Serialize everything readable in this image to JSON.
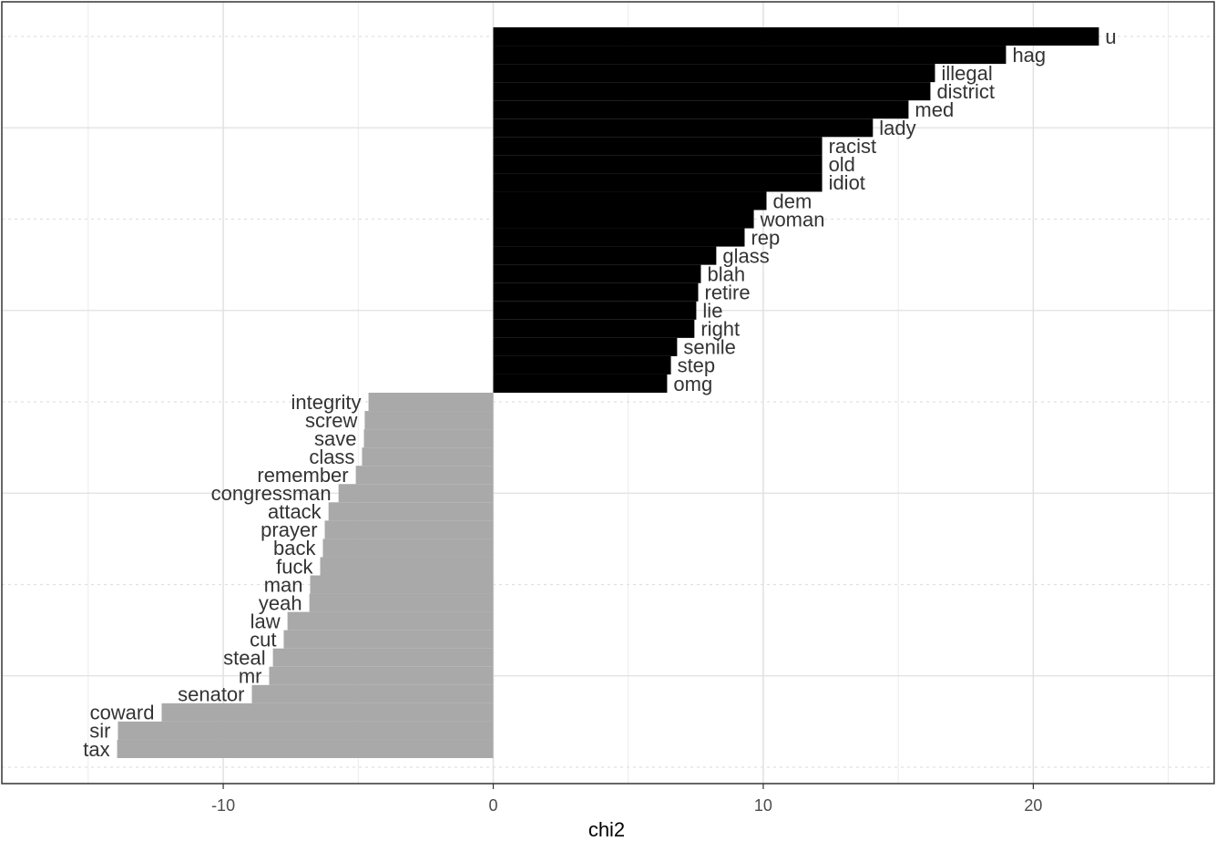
{
  "chart_data": {
    "type": "bar",
    "orientation": "horizontal",
    "x_label": "chi2",
    "categories": [
      "u",
      "hag",
      "illegal",
      "district",
      "med",
      "lady",
      "racist",
      "old",
      "idiot",
      "dem",
      "woman",
      "rep",
      "glass",
      "blah",
      "retire",
      "lie",
      "right",
      "senile",
      "step",
      "omg",
      "integrity",
      "screw",
      "save",
      "class",
      "remember",
      "congressman",
      "attack",
      "prayer",
      "back",
      "fuck",
      "man",
      "yeah",
      "law",
      "cut",
      "steal",
      "mr",
      "senator",
      "coward",
      "sir",
      "tax"
    ],
    "values": [
      22.43,
      18.99,
      16.36,
      16.19,
      15.38,
      14.06,
      12.18,
      12.18,
      12.18,
      10.12,
      9.65,
      9.31,
      8.26,
      7.69,
      7.59,
      7.52,
      7.45,
      6.81,
      6.58,
      6.44,
      -4.62,
      -4.76,
      -4.79,
      -4.86,
      -5.09,
      -5.73,
      -6.1,
      -6.24,
      -6.31,
      -6.41,
      -6.78,
      -6.81,
      -7.62,
      -7.76,
      -8.16,
      -8.3,
      -8.94,
      -12.28,
      -13.9,
      -13.93
    ],
    "colors": {
      "positive": "#000000",
      "negative": "#a9a9a9"
    },
    "xlim": [
      -18.2,
      26.7
    ],
    "xticks": [
      -10,
      0,
      10,
      20
    ],
    "grid": true
  }
}
